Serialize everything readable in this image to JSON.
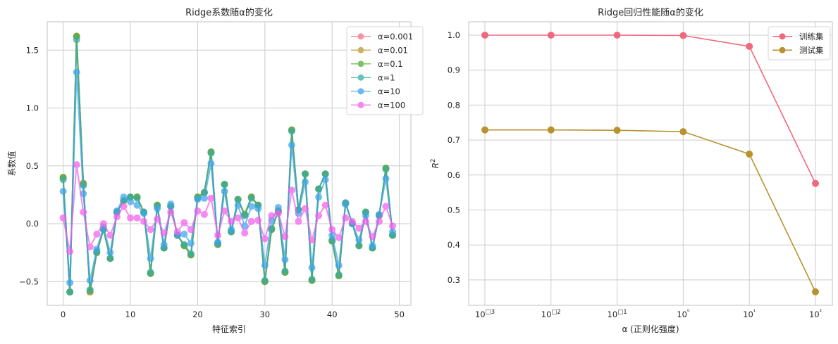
{
  "chart_data": [
    {
      "type": "line",
      "title": "Ridge系数随α的变化",
      "xlabel": "特征索引",
      "ylabel": "系数值",
      "xlim": [
        -2.4,
        51.7
      ],
      "ylim": [
        -0.71,
        1.74
      ],
      "xticks": [
        0,
        10,
        20,
        30,
        40,
        50
      ],
      "xtick_labels": [
        "0",
        "10",
        "20",
        "30",
        "40",
        "50"
      ],
      "yticks": [
        -0.5,
        0.0,
        0.5,
        1.0,
        1.5
      ],
      "ytick_labels": [
        "−0.5",
        "0.0",
        "0.5",
        "1.0",
        "1.5"
      ],
      "grid": true,
      "legend_position": "upper right",
      "x": [
        0,
        1,
        2,
        3,
        4,
        5,
        6,
        7,
        8,
        9,
        10,
        11,
        12,
        13,
        14,
        15,
        16,
        17,
        18,
        19,
        20,
        21,
        22,
        23,
        24,
        25,
        26,
        27,
        28,
        29,
        30,
        31,
        32,
        33,
        34,
        35,
        36,
        37,
        38,
        39,
        40,
        41,
        42,
        43,
        44,
        45,
        46,
        47,
        48,
        49
      ],
      "series": [
        {
          "name": "α=0.001",
          "color": "#f77189",
          "values": [
            0.4,
            -0.59,
            1.62,
            0.35,
            -0.59,
            -0.25,
            -0.05,
            -0.3,
            0.1,
            0.2,
            0.23,
            0.23,
            0.1,
            -0.43,
            0.16,
            -0.21,
            0.15,
            -0.1,
            -0.19,
            -0.27,
            0.23,
            0.27,
            0.62,
            -0.18,
            0.34,
            -0.07,
            0.21,
            0.08,
            0.23,
            0.16,
            -0.5,
            -0.05,
            0.11,
            -0.42,
            0.81,
            0.12,
            0.43,
            -0.49,
            0.3,
            0.43,
            -0.15,
            -0.45,
            0.18,
            0.0,
            -0.19,
            0.1,
            -0.21,
            0.07,
            0.48,
            -0.1
          ]
        },
        {
          "name": "α=0.01",
          "color": "#bb9832",
          "values": [
            0.4,
            -0.59,
            1.62,
            0.35,
            -0.59,
            -0.25,
            -0.05,
            -0.3,
            0.1,
            0.2,
            0.23,
            0.23,
            0.1,
            -0.43,
            0.16,
            -0.21,
            0.15,
            -0.1,
            -0.19,
            -0.27,
            0.23,
            0.27,
            0.62,
            -0.18,
            0.34,
            -0.07,
            0.21,
            0.08,
            0.23,
            0.16,
            -0.5,
            -0.05,
            0.11,
            -0.42,
            0.81,
            0.12,
            0.43,
            -0.49,
            0.3,
            0.43,
            -0.15,
            -0.45,
            0.18,
            0.0,
            -0.19,
            0.1,
            -0.21,
            0.07,
            0.48,
            -0.1
          ]
        },
        {
          "name": "α=0.1",
          "color": "#50b131",
          "values": [
            0.4,
            -0.59,
            1.62,
            0.34,
            -0.58,
            -0.25,
            -0.05,
            -0.3,
            0.1,
            0.2,
            0.23,
            0.23,
            0.1,
            -0.43,
            0.16,
            -0.21,
            0.15,
            -0.1,
            -0.19,
            -0.27,
            0.23,
            0.27,
            0.62,
            -0.18,
            0.34,
            -0.07,
            0.21,
            0.08,
            0.23,
            0.16,
            -0.5,
            -0.05,
            0.11,
            -0.42,
            0.81,
            0.12,
            0.43,
            -0.49,
            0.3,
            0.43,
            -0.15,
            -0.45,
            0.18,
            0.0,
            -0.19,
            0.1,
            -0.21,
            0.07,
            0.48,
            -0.1
          ]
        },
        {
          "name": "α=1",
          "color": "#36ada4",
          "values": [
            0.38,
            -0.59,
            1.59,
            0.33,
            -0.57,
            -0.24,
            -0.05,
            -0.3,
            0.1,
            0.2,
            0.23,
            0.22,
            0.1,
            -0.42,
            0.15,
            -0.21,
            0.15,
            -0.1,
            -0.18,
            -0.26,
            0.22,
            0.27,
            0.61,
            -0.17,
            0.34,
            -0.07,
            0.21,
            0.07,
            0.22,
            0.16,
            -0.49,
            -0.04,
            0.11,
            -0.41,
            0.8,
            0.12,
            0.43,
            -0.48,
            0.3,
            0.43,
            -0.14,
            -0.44,
            0.18,
            0.0,
            -0.19,
            0.1,
            -0.21,
            0.07,
            0.47,
            -0.1
          ]
        },
        {
          "name": "α=10",
          "color": "#3ba3ec",
          "values": [
            0.28,
            -0.51,
            1.31,
            0.26,
            -0.49,
            -0.22,
            -0.03,
            -0.25,
            0.11,
            0.23,
            0.19,
            0.16,
            0.09,
            -0.3,
            0.13,
            -0.18,
            0.17,
            -0.1,
            -0.09,
            -0.17,
            0.21,
            0.22,
            0.52,
            -0.16,
            0.28,
            -0.05,
            0.16,
            -0.02,
            0.15,
            0.13,
            -0.36,
            0.03,
            0.14,
            -0.31,
            0.68,
            0.09,
            0.36,
            -0.38,
            0.23,
            0.38,
            -0.1,
            -0.36,
            0.17,
            0.0,
            -0.14,
            0.07,
            -0.19,
            0.08,
            0.39,
            -0.07
          ]
        },
        {
          "name": "α=100",
          "color": "#f45deb",
          "values": [
            0.05,
            -0.24,
            0.51,
            0.1,
            -0.2,
            -0.09,
            0.0,
            -0.1,
            0.06,
            0.15,
            0.05,
            0.05,
            0.02,
            -0.05,
            0.04,
            -0.08,
            0.1,
            -0.07,
            0.01,
            -0.05,
            0.11,
            0.08,
            0.22,
            -0.1,
            0.11,
            0.02,
            0.05,
            -0.08,
            0.02,
            0.03,
            -0.13,
            0.07,
            0.09,
            -0.11,
            0.29,
            0.02,
            0.13,
            -0.14,
            0.07,
            0.16,
            -0.05,
            -0.12,
            0.05,
            0.02,
            -0.04,
            0.02,
            -0.11,
            0.02,
            0.15,
            -0.02
          ]
        }
      ]
    },
    {
      "type": "line",
      "title": "Ridge回归性能随α的变化",
      "xlabel": "α (正则化强度)",
      "ylabel": "R²",
      "xscale": "log",
      "x": [
        0.001,
        0.01,
        0.1,
        1,
        10,
        100
      ],
      "xtick_labels": [
        "10□3",
        "10□2",
        "10□1",
        "10⁰",
        "10¹",
        "10²"
      ],
      "yticks": [
        0.3,
        0.4,
        0.5,
        0.6,
        0.7,
        0.8,
        0.9,
        1.0
      ],
      "ytick_labels": [
        "0.3",
        "0.4",
        "0.5",
        "0.6",
        "0.7",
        "0.8",
        "0.9",
        "1.0"
      ],
      "ylim": [
        0.235,
        1.036
      ],
      "grid": true,
      "legend_position": "upper right",
      "series": [
        {
          "name": "训练集",
          "color": "#f0697f",
          "values": [
            1.0,
            1.0,
            1.0,
            0.999,
            0.968,
            0.576
          ]
        },
        {
          "name": "测试集",
          "color": "#b7922f",
          "values": [
            0.729,
            0.729,
            0.728,
            0.724,
            0.66,
            0.266
          ]
        }
      ]
    }
  ]
}
